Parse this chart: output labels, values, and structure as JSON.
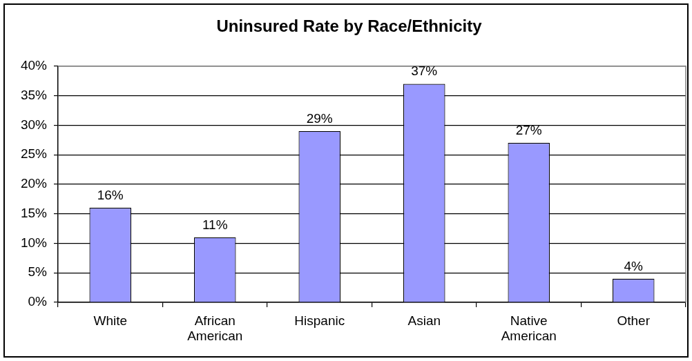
{
  "chart_data": {
    "type": "bar",
    "title": "Uninsured Rate by Race/Ethnicity",
    "categories": [
      "White",
      "African American",
      "Hispanic",
      "Asian",
      "Native American",
      "Other"
    ],
    "values": [
      16,
      11,
      29,
      37,
      27,
      4
    ],
    "value_labels": [
      "16%",
      "11%",
      "29%",
      "37%",
      "27%",
      "4%"
    ],
    "color": "#9999ff",
    "ylim": [
      0,
      40
    ],
    "yticks": [
      {
        "value": 0,
        "label": "0%"
      },
      {
        "value": 5,
        "label": "5%"
      },
      {
        "value": 10,
        "label": "10%"
      },
      {
        "value": 15,
        "label": "15%"
      },
      {
        "value": 20,
        "label": "20%"
      },
      {
        "value": 25,
        "label": "25%"
      },
      {
        "value": 30,
        "label": "30%"
      },
      {
        "value": 35,
        "label": "35%"
      },
      {
        "value": 40,
        "label": "40%"
      }
    ],
    "grid": "y",
    "legend": false
  }
}
